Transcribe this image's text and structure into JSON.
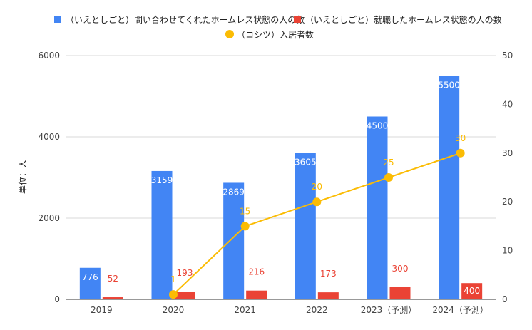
{
  "chart_data": {
    "type": "bar",
    "categories": [
      "2019",
      "2020",
      "2021",
      "2022",
      "2023（予測）",
      "2024（予測）"
    ],
    "ylabel": "単位：人",
    "ylim": [
      0,
      6000
    ],
    "y_ticks": [
      "0",
      "2000",
      "4000",
      "6000"
    ],
    "y2lim": [
      0,
      50
    ],
    "y2_ticks": [
      "0",
      "10",
      "20",
      "30",
      "40",
      "50"
    ],
    "grid": true,
    "legend_position": "top",
    "series": [
      {
        "name": "（いえとしごと）問い合わせてくれたホームレス状態の人の数",
        "type": "bar",
        "axis": "left",
        "color": "#4285f4",
        "values": [
          776,
          3159,
          2869,
          3605,
          4500,
          5500
        ],
        "labels": [
          "776",
          "3159",
          "2869",
          "3605",
          "4500",
          "5500"
        ]
      },
      {
        "name": "（いえとしごと）就職したホームレス状態の人の数",
        "type": "bar",
        "axis": "left",
        "color": "#ea4335",
        "values": [
          52,
          193,
          216,
          173,
          300,
          400
        ],
        "labels": [
          "52",
          "193",
          "216",
          "173",
          "300",
          "400"
        ]
      },
      {
        "name": "（コシツ）入居者数",
        "type": "line",
        "axis": "right",
        "color": "#fbbc04",
        "x": [
          "2020",
          "2021",
          "2022",
          "2023（予測）",
          "2024（予測）"
        ],
        "values": [
          1,
          15,
          20,
          25,
          30
        ],
        "labels": [
          "1",
          "15",
          "20",
          "25",
          "30"
        ]
      }
    ]
  }
}
